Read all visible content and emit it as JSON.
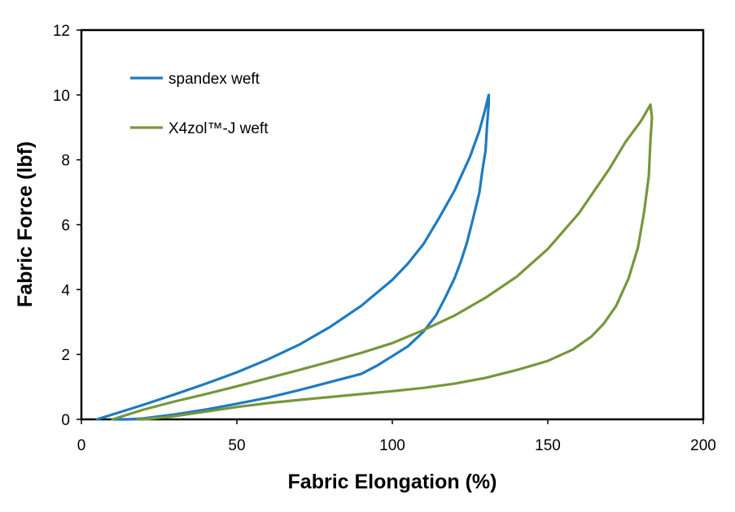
{
  "chart_data": {
    "type": "line",
    "title": "",
    "xlabel": "Fabric Elongation (%)",
    "ylabel": "Fabric Force (lbf)",
    "xlim": [
      0,
      200
    ],
    "ylim": [
      0,
      12
    ],
    "xticks": [
      0,
      50,
      100,
      150,
      200
    ],
    "yticks": [
      0,
      2,
      4,
      6,
      8,
      10,
      12
    ],
    "grid": false,
    "legend_position": "top-left",
    "series": [
      {
        "name": "spandex weft",
        "color": "#1f7bbf",
        "x": [
          5,
          10,
          20,
          30,
          40,
          50,
          60,
          70,
          80,
          90,
          100,
          105,
          110,
          115,
          120,
          125,
          128,
          130,
          131,
          131,
          130.5,
          130,
          129,
          128,
          126,
          124,
          122,
          120,
          117,
          114,
          110,
          105,
          100,
          95,
          90,
          80,
          70,
          60,
          50,
          40,
          30,
          20,
          15,
          10
        ],
        "y": [
          0,
          0.15,
          0.45,
          0.77,
          1.1,
          1.45,
          1.85,
          2.3,
          2.85,
          3.5,
          4.3,
          4.8,
          5.4,
          6.2,
          7.05,
          8.1,
          8.9,
          9.6,
          10.0,
          9.7,
          9.1,
          8.3,
          7.7,
          7.0,
          6.2,
          5.45,
          4.85,
          4.35,
          3.75,
          3.2,
          2.7,
          2.25,
          1.95,
          1.65,
          1.4,
          1.15,
          0.9,
          0.67,
          0.48,
          0.3,
          0.15,
          0.03,
          0,
          0
        ]
      },
      {
        "name": "X4zol™-J weft",
        "color": "#77963c",
        "x": [
          10,
          20,
          30,
          40,
          50,
          60,
          70,
          80,
          90,
          100,
          110,
          120,
          130,
          140,
          150,
          160,
          170,
          175,
          180,
          183,
          183.5,
          183,
          182.5,
          181,
          179,
          176,
          172,
          168,
          164,
          158,
          150,
          140,
          130,
          120,
          110,
          100,
          90,
          80,
          70,
          60,
          50,
          40,
          30,
          20,
          18
        ],
        "y": [
          0,
          0.3,
          0.55,
          0.78,
          1.02,
          1.27,
          1.52,
          1.78,
          2.05,
          2.35,
          2.75,
          3.2,
          3.75,
          4.4,
          5.25,
          6.35,
          7.75,
          8.55,
          9.2,
          9.7,
          9.3,
          8.6,
          7.5,
          6.4,
          5.3,
          4.35,
          3.5,
          2.95,
          2.55,
          2.15,
          1.8,
          1.52,
          1.28,
          1.1,
          0.97,
          0.87,
          0.78,
          0.69,
          0.6,
          0.5,
          0.38,
          0.24,
          0.1,
          0,
          0
        ]
      }
    ]
  }
}
